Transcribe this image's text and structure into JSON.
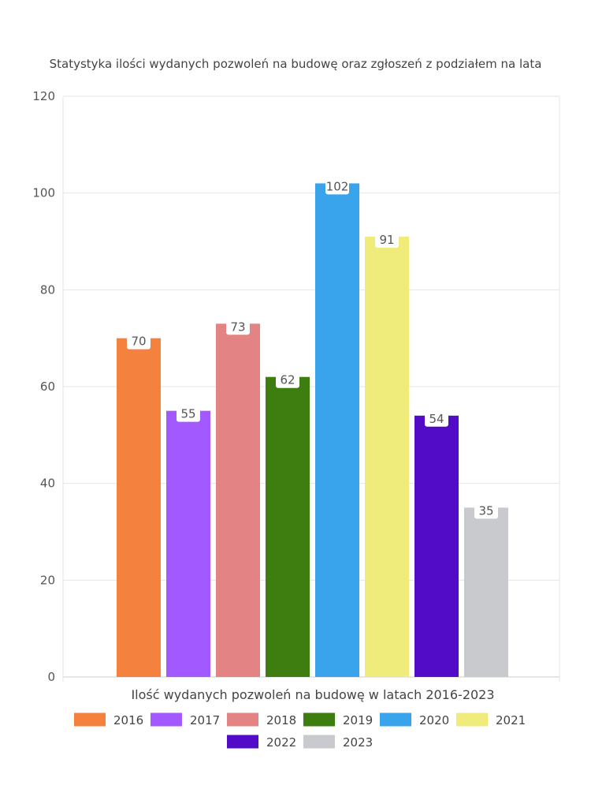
{
  "chart_data": {
    "type": "bar",
    "title": "Statystyka ilości wydanych pozwoleń na budowę oraz zgłoszeń z podziałem na lata",
    "xlabel": "Ilość wydanych pozwoleń na budowę w latach 2016-2023",
    "ylabel": "",
    "ylim": [
      0,
      120
    ],
    "yticks": [
      0,
      20,
      40,
      60,
      80,
      100,
      120
    ],
    "grid": true,
    "legend_position": "bottom",
    "series": [
      {
        "name": "2016",
        "value": 70,
        "color": "#f5813f"
      },
      {
        "name": "2017",
        "value": 55,
        "color": "#a259ff"
      },
      {
        "name": "2018",
        "value": 73,
        "color": "#e38383"
      },
      {
        "name": "2019",
        "value": 62,
        "color": "#3e7d0f"
      },
      {
        "name": "2020",
        "value": 102,
        "color": "#39a3ec"
      },
      {
        "name": "2021",
        "value": 91,
        "color": "#f0ec7c"
      },
      {
        "name": "2022",
        "value": 54,
        "color": "#520cc7"
      },
      {
        "name": "2023",
        "value": 35,
        "color": "#c9cacd"
      }
    ]
  }
}
